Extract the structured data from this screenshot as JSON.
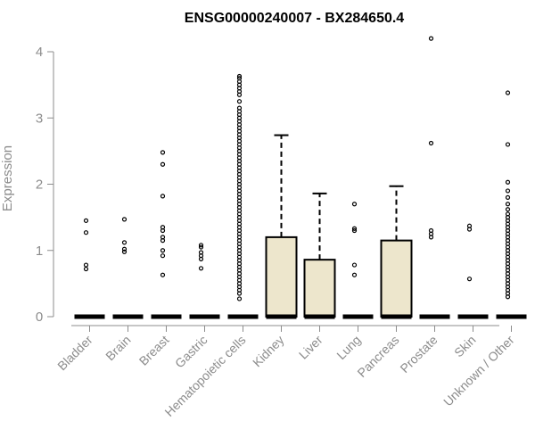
{
  "chart_data": {
    "type": "box",
    "title": "ENSG00000240007 - BX284650.4",
    "xlabel": "",
    "ylabel": "Expression",
    "ylim": [
      0,
      4.2
    ],
    "yticks": [
      0,
      1,
      2,
      3,
      4
    ],
    "box_color": "#ede6cc",
    "categories": [
      "Bladder",
      "Brain",
      "Breast",
      "Gastric",
      "Hematopoietic cells",
      "Kidney",
      "Liver",
      "Lung",
      "Pancreas",
      "Prostate",
      "Skin",
      "Unknown / Other"
    ],
    "boxes": [
      {
        "category": "Bladder",
        "q1": 0,
        "median": 0,
        "q3": 0,
        "whisker_low": 0,
        "whisker_high": 0,
        "outliers": [
          1.45,
          1.27,
          0.78,
          0.72
        ]
      },
      {
        "category": "Brain",
        "q1": 0,
        "median": 0,
        "q3": 0,
        "whisker_low": 0,
        "whisker_high": 0,
        "outliers": [
          1.47,
          1.12,
          1.02,
          0.98
        ]
      },
      {
        "category": "Breast",
        "q1": 0,
        "median": 0,
        "q3": 0,
        "whisker_low": 0,
        "whisker_high": 0,
        "outliers": [
          2.48,
          2.3,
          1.82,
          1.35,
          1.3,
          1.2,
          1.15,
          1.0,
          0.92,
          0.63
        ]
      },
      {
        "category": "Gastric",
        "q1": 0,
        "median": 0,
        "q3": 0,
        "whisker_low": 0,
        "whisker_high": 0,
        "outliers": [
          1.08,
          1.05,
          0.97,
          0.92,
          0.87,
          0.73
        ]
      },
      {
        "category": "Hematopoietic cells",
        "q1": 0,
        "median": 0,
        "q3": 0,
        "whisker_low": 0,
        "whisker_high": 0,
        "outliers": [
          3.63,
          3.6,
          3.55,
          3.5,
          3.45,
          3.4,
          3.35,
          3.25,
          3.15,
          3.1,
          3.05,
          3.0,
          2.95,
          2.9,
          2.85,
          2.8,
          2.75,
          2.7,
          2.65,
          2.6,
          2.55,
          2.5,
          2.45,
          2.4,
          2.35,
          2.3,
          2.25,
          2.2,
          2.15,
          2.1,
          2.05,
          2.0,
          1.95,
          1.9,
          1.85,
          1.8,
          1.75,
          1.7,
          1.65,
          1.6,
          1.55,
          1.5,
          1.45,
          1.4,
          1.35,
          1.3,
          1.25,
          1.2,
          1.15,
          1.1,
          1.05,
          1.0,
          0.95,
          0.9,
          0.85,
          0.8,
          0.75,
          0.7,
          0.65,
          0.6,
          0.55,
          0.5,
          0.45,
          0.4,
          0.35,
          0.27
        ]
      },
      {
        "category": "Kidney",
        "q1": 0,
        "median": 0,
        "q3": 1.2,
        "whisker_low": 0,
        "whisker_high": 2.74,
        "outliers": []
      },
      {
        "category": "Liver",
        "q1": 0,
        "median": 0,
        "q3": 0.86,
        "whisker_low": 0,
        "whisker_high": 1.86,
        "outliers": []
      },
      {
        "category": "Lung",
        "q1": 0,
        "median": 0,
        "q3": 0,
        "whisker_low": 0,
        "whisker_high": 0,
        "outliers": [
          1.7,
          1.33,
          1.3,
          0.78,
          0.63
        ]
      },
      {
        "category": "Pancreas",
        "q1": 0,
        "median": 0,
        "q3": 1.15,
        "whisker_low": 0,
        "whisker_high": 1.97,
        "outliers": []
      },
      {
        "category": "Prostate",
        "q1": 0,
        "median": 0,
        "q3": 0,
        "whisker_low": 0,
        "whisker_high": 0,
        "outliers": [
          4.2,
          2.62,
          1.3,
          1.25,
          1.2
        ]
      },
      {
        "category": "Skin",
        "q1": 0,
        "median": 0,
        "q3": 0,
        "whisker_low": 0,
        "whisker_high": 0,
        "outliers": [
          1.37,
          1.32,
          0.57
        ]
      },
      {
        "category": "Unknown / Other",
        "q1": 0,
        "median": 0,
        "q3": 0,
        "whisker_low": 0,
        "whisker_high": 0,
        "outliers": [
          3.38,
          2.6,
          2.03,
          1.9,
          1.8,
          1.7,
          1.62,
          1.55,
          1.5,
          1.45,
          1.4,
          1.35,
          1.3,
          1.25,
          1.2,
          1.15,
          1.1,
          1.05,
          1.0,
          0.95,
          0.9,
          0.85,
          0.8,
          0.75,
          0.7,
          0.65,
          0.6,
          0.55,
          0.5,
          0.45,
          0.4,
          0.35,
          0.3
        ]
      }
    ]
  }
}
